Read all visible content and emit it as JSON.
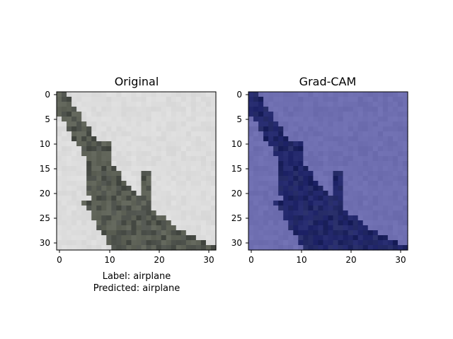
{
  "panels": [
    {
      "title": "Original",
      "caption_lines": [
        "Label: airplane",
        "Predicted: airplane"
      ]
    },
    {
      "title": "Grad-CAM",
      "caption_lines": []
    }
  ],
  "axis": {
    "x_ticks": [
      "0",
      "10",
      "20",
      "30"
    ],
    "y_ticks": [
      "0",
      "5",
      "10",
      "15",
      "20",
      "25",
      "30"
    ],
    "pixel_grid": 32
  },
  "colors": {
    "original_background": "#dcdcdc",
    "airplane_dark": "#3f433d",
    "airplane_mid": "#666a5f",
    "gradcam_background": "#6e6eb0",
    "gradcam_dark": "#141a55",
    "gradcam_mid": "#2a2f73"
  }
}
